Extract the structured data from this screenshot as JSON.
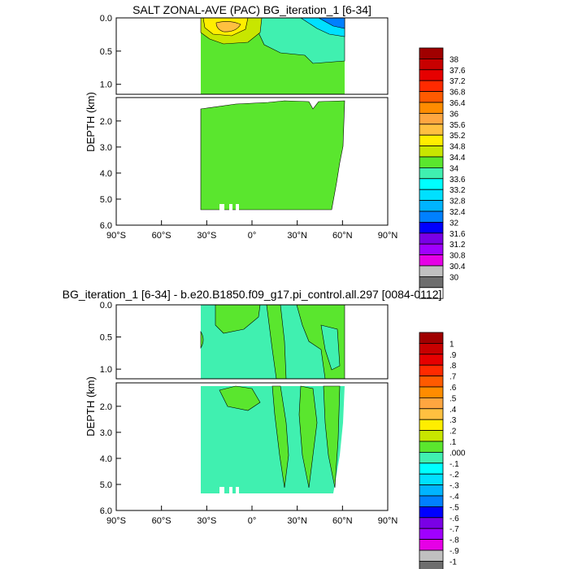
{
  "chart_data": [
    {
      "type": "contour",
      "title": "SALT ZONAL-AVE (PAC) BG_iteration_1 [6-34]",
      "ylabel": "DEPTH (km)",
      "x_ticks": [
        "90°S",
        "60°S",
        "30°S",
        "0°",
        "30°N",
        "60°N",
        "90°N"
      ],
      "y_ticks_upper": [
        "0.0",
        "0.5",
        "1.0"
      ],
      "y_ticks_lower": [
        "2.0",
        "3.0",
        "4.0",
        "5.0",
        "6.0"
      ],
      "xlim": [
        -90,
        90
      ],
      "ylim_km": [
        0,
        6
      ],
      "data_lat_range": [
        -33,
        62
      ],
      "colorbar_labels": [
        "38",
        "37.6",
        "37.2",
        "36.8",
        "36.4",
        "36",
        "35.6",
        "35.2",
        "34.8",
        "34.4",
        "34",
        "33.6",
        "33.2",
        "32.8",
        "32.4",
        "32",
        "31.6",
        "31.2",
        "30.8",
        "30.4",
        "30"
      ],
      "colorbar_colors": [
        "#a00000",
        "#c80000",
        "#e60000",
        "#ff2a00",
        "#ff5a00",
        "#ff8c00",
        "#ffa640",
        "#ffc040",
        "#ffee00",
        "#c8e600",
        "#5ae62e",
        "#40f0b0",
        "#00ffff",
        "#00e0ff",
        "#00b4ff",
        "#0080ff",
        "#0000ff",
        "#7a00e6",
        "#a000ff",
        "#e600e6",
        "#c0c0c0",
        "#6e6e6e",
        "#ffffff"
      ]
    },
    {
      "type": "contour",
      "title": "BG_iteration_1 [6-34] - b.e20.B1850.f09_g17.pi_control.all.297 [0084-0112]",
      "ylabel": "DEPTH (km)",
      "x_ticks": [
        "90°S",
        "60°S",
        "30°S",
        "0°",
        "30°N",
        "60°N",
        "90°N"
      ],
      "y_ticks_upper": [
        "0.0",
        "0.5",
        "1.0"
      ],
      "y_ticks_lower": [
        "2.0",
        "3.0",
        "4.0",
        "5.0",
        "6.0"
      ],
      "xlim": [
        -90,
        90
      ],
      "ylim_km": [
        0,
        6
      ],
      "data_lat_range": [
        -33,
        62
      ],
      "colorbar_labels": [
        "1",
        ".9",
        ".8",
        ".7",
        ".6",
        ".5",
        ".4",
        ".3",
        ".2",
        ".1",
        ".000",
        "-.1",
        "-.2",
        "-.3",
        "-.4",
        "-.5",
        "-.6",
        "-.7",
        "-.8",
        "-.9",
        "-1"
      ],
      "colorbar_colors": [
        "#a00000",
        "#c80000",
        "#e60000",
        "#ff2a00",
        "#ff5a00",
        "#ff8c00",
        "#ffa640",
        "#ffc040",
        "#ffee00",
        "#c8e600",
        "#5ae62e",
        "#40f0b0",
        "#00ffff",
        "#00e0ff",
        "#00b4ff",
        "#0080ff",
        "#0000ff",
        "#7a00e6",
        "#a000ff",
        "#e600e6",
        "#c0c0c0",
        "#6e6e6e",
        "#ffffff"
      ]
    }
  ]
}
